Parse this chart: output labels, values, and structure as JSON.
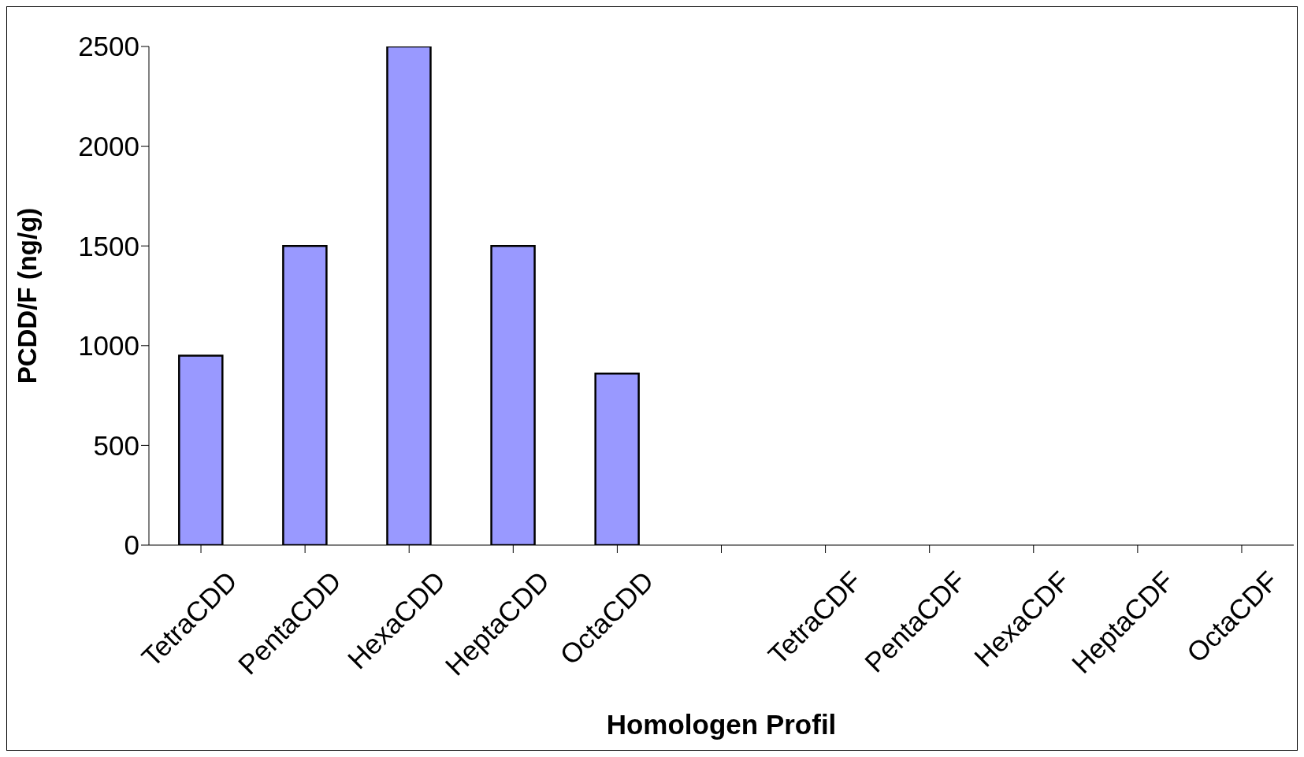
{
  "chart_data": {
    "type": "bar",
    "xlabel": "Homologen Profil",
    "ylabel": "PCDD/F (ng/g)",
    "categories": [
      "TetraCDD",
      "PentaCDD",
      "HexaCDD",
      "HeptaCDD",
      "OctaCDD",
      null,
      "TetraCDF",
      "PentaCDF",
      "HexaCDF",
      "HeptaCDF",
      "OctaCDF"
    ],
    "values": [
      950,
      1500,
      2500,
      1500,
      860,
      null,
      null,
      null,
      null,
      null,
      null
    ],
    "color": "#9999ff",
    "ylim": [
      0,
      2500
    ],
    "yticks": [
      0,
      500,
      1000,
      1500,
      2000,
      2500
    ],
    "grid": false,
    "legend": false
  }
}
